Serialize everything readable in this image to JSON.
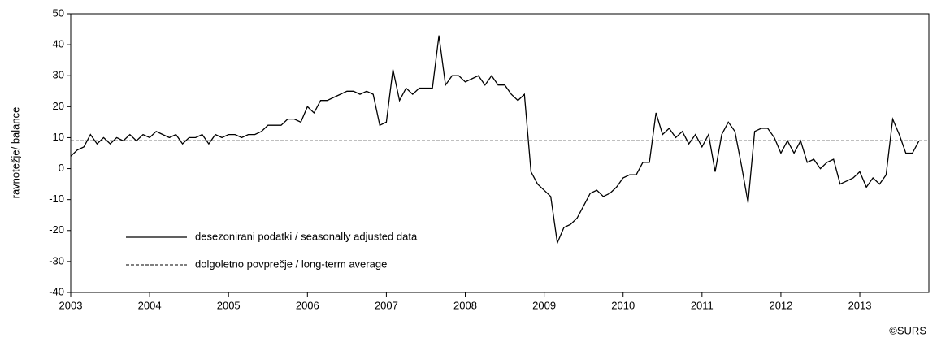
{
  "chart_data": {
    "type": "line",
    "y_label": "ravnotežje/ balance",
    "source": "©SURS",
    "categories": [
      "2003",
      null,
      null,
      null,
      null,
      null,
      null,
      null,
      null,
      null,
      null,
      null,
      "2004",
      null,
      null,
      null,
      null,
      null,
      null,
      null,
      null,
      null,
      null,
      null,
      "2005",
      null,
      null,
      null,
      null,
      null,
      null,
      null,
      null,
      null,
      null,
      null,
      "2006",
      null,
      null,
      null,
      null,
      null,
      null,
      null,
      null,
      null,
      null,
      null,
      "2007",
      null,
      null,
      null,
      null,
      null,
      null,
      null,
      null,
      null,
      null,
      null,
      "2008",
      null,
      null,
      null,
      null,
      null,
      null,
      null,
      null,
      null,
      null,
      null,
      "2009",
      null,
      null,
      null,
      null,
      null,
      null,
      null,
      null,
      null,
      null,
      null,
      "2010",
      null,
      null,
      null,
      null,
      null,
      null,
      null,
      null,
      null,
      null,
      null,
      "2011",
      null,
      null,
      null,
      null,
      null,
      null,
      null,
      null,
      null,
      null,
      null,
      "2012",
      null,
      null,
      null,
      null,
      null,
      null,
      null,
      null,
      null,
      null,
      null,
      "2013",
      null,
      null,
      null,
      null,
      null,
      null,
      null,
      null,
      null
    ],
    "series": [
      {
        "name": "desezonirani podatki / seasonally adjusted data",
        "color": "#000000",
        "values": [
          4,
          6,
          7,
          11,
          8,
          10,
          8,
          10,
          9,
          11,
          9,
          11,
          10,
          12,
          11,
          10,
          11,
          8,
          10,
          10,
          11,
          8,
          11,
          10,
          11,
          11,
          10,
          11,
          11,
          12,
          14,
          14,
          14,
          16,
          16,
          15,
          20,
          18,
          22,
          22,
          23,
          24,
          25,
          25,
          24,
          25,
          24,
          14,
          15,
          32,
          22,
          26,
          24,
          26,
          26,
          26,
          43,
          27,
          30,
          30,
          28,
          29,
          30,
          27,
          30,
          27,
          27,
          24,
          22,
          24,
          -1,
          -5,
          -7,
          -9,
          -24,
          -19,
          -18,
          -16,
          -12,
          -8,
          -7,
          -9,
          -8,
          -6,
          -3,
          -2,
          -2,
          2,
          2,
          18,
          11,
          13,
          10,
          12,
          8,
          11,
          7,
          11,
          -1,
          11,
          15,
          12,
          1,
          -11,
          12,
          13,
          13,
          10,
          5,
          9,
          5,
          9,
          2,
          3,
          0,
          2,
          3,
          -5,
          -4,
          -3,
          -1,
          -6,
          -3,
          -5,
          -2,
          16,
          11,
          5,
          5,
          9
        ]
      }
    ],
    "average": {
      "name": "dolgoletno povprečje / long-term average",
      "value": 9,
      "color": "#000000",
      "dashed": true
    },
    "ylim": [
      -40,
      50
    ],
    "yticks": [
      -40,
      -30,
      -20,
      -10,
      0,
      10,
      20,
      30,
      40,
      50
    ],
    "grid": false,
    "legend": "lower-left"
  }
}
